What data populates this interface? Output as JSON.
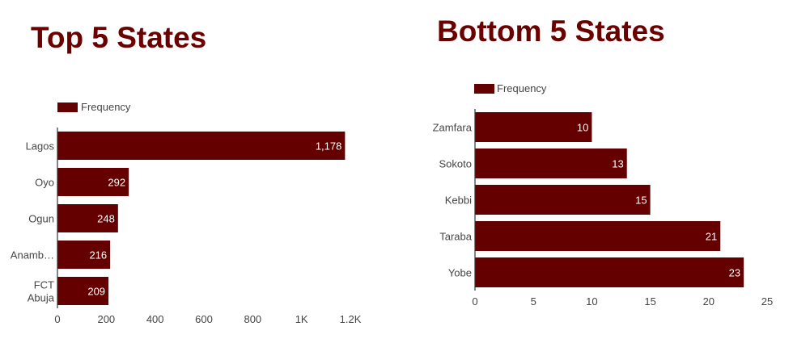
{
  "colors": {
    "bar": "#640000",
    "title": "#6b0000",
    "axis": "#333333",
    "text": "#444444",
    "label": "#ffffff"
  },
  "chart_data": [
    {
      "type": "bar",
      "orientation": "horizontal",
      "title": "Top 5 States",
      "legend": {
        "position": "top-left",
        "entries": [
          "Frequency"
        ]
      },
      "categories": [
        "Lagos",
        "Oyo",
        "Ogun",
        "Anamb…",
        "FCT Abuja"
      ],
      "series": [
        {
          "name": "Frequency",
          "values": [
            1178,
            292,
            248,
            216,
            209
          ]
        }
      ],
      "data_labels": [
        "1,178",
        "292",
        "248",
        "216",
        "209"
      ],
      "xlim": [
        0,
        1200
      ],
      "xticks": [
        0,
        200,
        400,
        600,
        800,
        1000,
        1200
      ],
      "xtick_labels": [
        "0",
        "200",
        "400",
        "600",
        "800",
        "1K",
        "1.2K"
      ],
      "grid": false
    },
    {
      "type": "bar",
      "orientation": "horizontal",
      "title": "Bottom 5 States",
      "legend": {
        "position": "top-left",
        "entries": [
          "Frequency"
        ]
      },
      "categories": [
        "Zamfara",
        "Sokoto",
        "Kebbi",
        "Taraba",
        "Yobe"
      ],
      "series": [
        {
          "name": "Frequency",
          "values": [
            10,
            13,
            15,
            21,
            23
          ]
        }
      ],
      "data_labels": [
        "10",
        "13",
        "15",
        "21",
        "23"
      ],
      "xlim": [
        0,
        25
      ],
      "xticks": [
        0,
        5,
        10,
        15,
        20,
        25
      ],
      "xtick_labels": [
        "0",
        "5",
        "10",
        "15",
        "20",
        "25"
      ],
      "grid": false
    }
  ]
}
